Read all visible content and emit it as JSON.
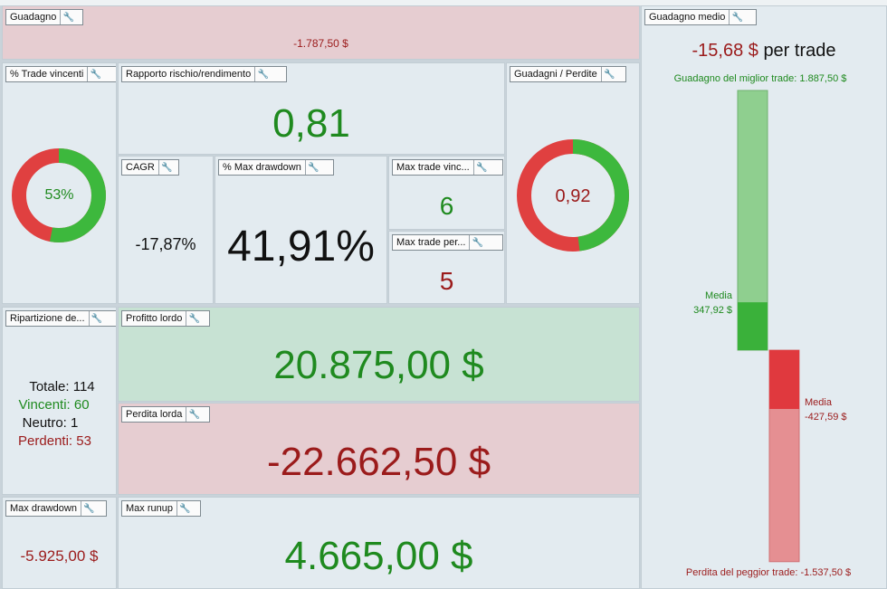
{
  "icons": {
    "wrench": "wrench-icon"
  },
  "colors": {
    "positive": "#1f8a1f",
    "negative": "#9b1b1b",
    "donut_green": "#3db83d",
    "donut_red": "#e04040"
  },
  "guadagno": {
    "title": "Guadagno",
    "value": "-1.787,50 $"
  },
  "trade_vincenti": {
    "title": "% Trade vincenti",
    "value": "53%",
    "win_fraction": 0.53
  },
  "rischio_rendimento": {
    "title": "Rapporto rischio/rendimento",
    "value": "0,81"
  },
  "guadagni_perdite": {
    "title": "Guadagni / Perdite",
    "value": "0,92",
    "green_fraction": 0.48
  },
  "cagr": {
    "title": "CAGR",
    "value": "-17,87%"
  },
  "max_drawdown_pct": {
    "title": "% Max drawdown",
    "value": "41,91%"
  },
  "max_trade_vinc": {
    "title": "Max trade vinc...",
    "value": "6"
  },
  "max_trade_per": {
    "title": "Max trade per...",
    "value": "5"
  },
  "ripartizione": {
    "title": "Ripartizione de...",
    "totale_label": "Totale:",
    "totale": "114",
    "vincenti_label": "Vincenti:",
    "vincenti": "60",
    "neutro_label": "Neutro:",
    "neutro": "1",
    "perdenti_label": "Perdenti:",
    "perdenti": "53"
  },
  "profitto_lordo": {
    "title": "Profitto lordo",
    "value": "20.875,00 $"
  },
  "perdita_lorda": {
    "title": "Perdita lorda",
    "value": "-22.662,50 $"
  },
  "max_drawdown": {
    "title": "Max drawdown",
    "value": "-5.925,00 $"
  },
  "max_runup": {
    "title": "Max runup",
    "value": "4.665,00 $"
  },
  "guadagno_medio": {
    "title": "Guadagno medio",
    "value": "-15,68 $",
    "suffix": "per trade",
    "best_trade_label": "Guadagno del miglior trade: 1.887,50 $",
    "media_label": "Media",
    "media_win": "347,92 $",
    "media_loss": "-427,59 $",
    "worst_trade_label": "Perdita del peggior trade: -1.537,50 $"
  },
  "chart_data": {
    "type": "bar",
    "categories": [
      "Guadagno del miglior trade",
      "Perdita del peggior trade"
    ],
    "series": [
      {
        "values": [
          1887.5,
          -1537.5
        ]
      },
      {
        "name": "Media",
        "values": [
          347.92,
          -427.59
        ]
      }
    ]
  }
}
